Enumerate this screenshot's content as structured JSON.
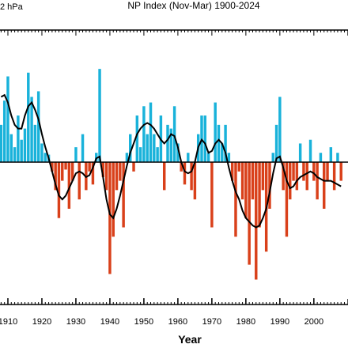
{
  "chart_data": {
    "type": "bar",
    "title": "NP Index (Nov-Mar) 1900-2024",
    "unit_label": "2 hPa",
    "x_label": "Year",
    "x": [
      1908,
      1909,
      1910,
      1911,
      1912,
      1913,
      1914,
      1915,
      1916,
      1917,
      1918,
      1919,
      1920,
      1921,
      1922,
      1923,
      1924,
      1925,
      1926,
      1927,
      1928,
      1929,
      1930,
      1931,
      1932,
      1933,
      1934,
      1935,
      1936,
      1937,
      1938,
      1939,
      1940,
      1941,
      1942,
      1943,
      1944,
      1945,
      1946,
      1947,
      1948,
      1949,
      1950,
      1951,
      1952,
      1953,
      1954,
      1955,
      1956,
      1957,
      1958,
      1959,
      1960,
      1961,
      1962,
      1963,
      1964,
      1965,
      1966,
      1967,
      1968,
      1969,
      1970,
      1971,
      1972,
      1973,
      1974,
      1975,
      1976,
      1977,
      1978,
      1979,
      1980,
      1981,
      1982,
      1983,
      1984,
      1985,
      1986,
      1987,
      1988,
      1989,
      1990,
      1991,
      1992,
      1993,
      1994,
      1995,
      1996,
      1997,
      1998,
      1999,
      2000,
      2001,
      2002,
      2003,
      2004,
      2005,
      2006,
      2007,
      2008
    ],
    "series": [
      {
        "name": "anomaly",
        "positive_color": "#19b2da",
        "negative_color": "#d9401a",
        "values": [
          2.0,
          3.3,
          4.6,
          1.5,
          0.8,
          2.5,
          1.2,
          1.8,
          4.8,
          3.5,
          2.0,
          3.8,
          1.0,
          0.5,
          0.4,
          -0.5,
          -1.5,
          -3.0,
          -1.0,
          -0.4,
          -2.5,
          -1.0,
          0.8,
          -2.0,
          1.5,
          -1.5,
          -0.5,
          -1.2,
          0.5,
          5.0,
          -0.8,
          -1.5,
          -6.0,
          -4.0,
          -1.5,
          -1.0,
          -3.5,
          0.5,
          1.5,
          -0.5,
          2.5,
          0.8,
          3.0,
          1.5,
          3.2,
          1.5,
          0.8,
          2.5,
          -1.5,
          2.0,
          1.8,
          3.0,
          1.0,
          -0.5,
          -1.2,
          0.5,
          -1.5,
          -2.0,
          1.5,
          2.5,
          2.5,
          0.5,
          -3.5,
          3.2,
          2.0,
          1.0,
          2.0,
          0.5,
          -1.0,
          -4.0,
          -0.5,
          -2.0,
          -3.0,
          -5.5,
          -2.0,
          -6.3,
          -3.5,
          -1.5,
          -4.8,
          -2.5,
          0.5,
          2.0,
          3.5,
          -1.5,
          -4.0,
          -2.0,
          -1.0,
          -1.5,
          1.0,
          -1.0,
          -1.5,
          1.2,
          -1.0,
          -2.0,
          0.5,
          -2.5,
          -1.0,
          0.8,
          -1.5,
          0.5,
          -1.0
        ]
      },
      {
        "name": "smoothed",
        "color": "#000000",
        "values": [
          3.5,
          3.6,
          3.2,
          2.5,
          2.0,
          1.8,
          1.8,
          2.5,
          3.0,
          3.2,
          2.8,
          2.3,
          1.5,
          0.8,
          0.2,
          -0.5,
          -1.2,
          -1.8,
          -2.0,
          -1.8,
          -1.4,
          -1.0,
          -0.6,
          -0.5,
          -0.6,
          -0.8,
          -0.7,
          -0.3,
          0.2,
          0.3,
          -0.8,
          -2.0,
          -2.8,
          -3.0,
          -2.5,
          -1.8,
          -1.0,
          -0.2,
          0.5,
          1.0,
          1.5,
          1.8,
          2.0,
          2.1,
          2.0,
          1.8,
          1.5,
          1.2,
          1.0,
          1.2,
          1.5,
          1.4,
          0.8,
          0.0,
          -0.5,
          -0.6,
          -0.5,
          0.0,
          0.8,
          1.2,
          1.0,
          0.5,
          0.6,
          1.0,
          1.2,
          1.0,
          0.5,
          -0.3,
          -1.0,
          -1.6,
          -2.0,
          -2.6,
          -3.0,
          -3.2,
          -3.4,
          -3.5,
          -3.4,
          -3.0,
          -2.5,
          -1.6,
          -0.6,
          0.2,
          0.3,
          -0.3,
          -1.0,
          -1.4,
          -1.3,
          -1.0,
          -0.8,
          -0.7,
          -0.6,
          -0.5,
          -0.6,
          -0.8,
          -0.9,
          -1.0,
          -1.0,
          -1.0,
          -1.1,
          -1.2,
          -1.3
        ]
      }
    ],
    "xlim": [
      1900,
      2024
    ],
    "ylim": [
      -7,
      7
    ],
    "xticks": [
      1910,
      1920,
      1930,
      1940,
      1950,
      1960,
      1970,
      1980,
      1990,
      2000
    ]
  }
}
